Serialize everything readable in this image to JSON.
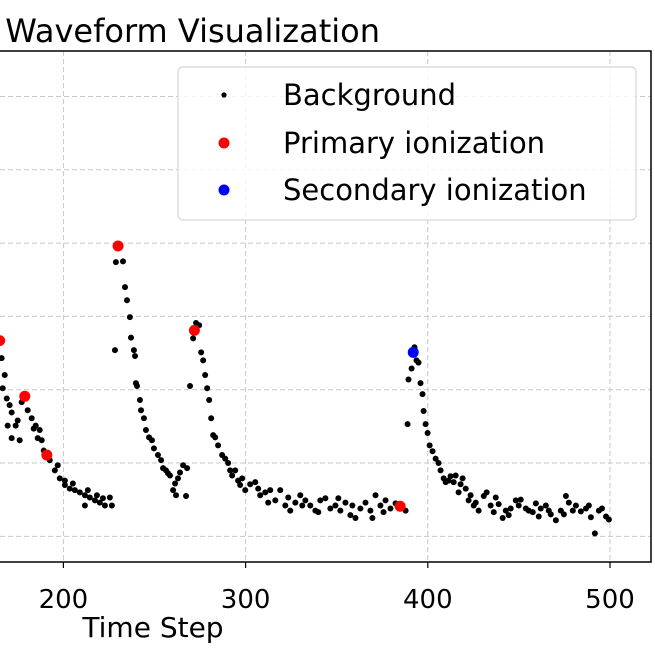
{
  "chart_data": {
    "type": "scatter",
    "title": "Waveform Visualization",
    "xlabel": "Time Step",
    "ylabel": "",
    "xlim": [
      165.2,
      522.5
    ],
    "ylim": [
      -0.35,
      6.62
    ],
    "x_ticks": [
      200,
      300,
      400,
      500
    ],
    "y_grid": [
      0,
      1,
      2,
      3,
      4,
      5,
      6
    ],
    "grid": true,
    "legend_position": "top-right",
    "series": [
      {
        "name": "Background",
        "color": "#000000",
        "points": [
          [
            166.1,
            2.43
          ],
          [
            167.8,
            2.2
          ],
          [
            166.7,
            2.02
          ],
          [
            168.9,
            1.88
          ],
          [
            170.5,
            1.79
          ],
          [
            171.6,
            1.69
          ],
          [
            174.9,
            1.58
          ],
          [
            173.8,
            1.51
          ],
          [
            176.0,
            1.31
          ],
          [
            171.6,
            1.34
          ],
          [
            169.4,
            1.51
          ],
          [
            177.1,
            1.83
          ],
          [
            180.4,
            1.72
          ],
          [
            182.6,
            1.61
          ],
          [
            184.8,
            1.51
          ],
          [
            187.0,
            1.45
          ],
          [
            183.7,
            1.47
          ],
          [
            185.9,
            1.34
          ],
          [
            188.1,
            1.31
          ],
          [
            189.2,
            1.17
          ],
          [
            192.5,
            1.04
          ],
          [
            195.3,
            0.9
          ],
          [
            198.0,
            0.79
          ],
          [
            200.8,
            0.7
          ],
          [
            203.5,
            0.65
          ],
          [
            206.3,
            0.63
          ],
          [
            209.0,
            0.6
          ],
          [
            211.8,
            0.56
          ],
          [
            214.5,
            0.53
          ],
          [
            217.3,
            0.49
          ],
          [
            220.0,
            0.46
          ],
          [
            222.8,
            0.42
          ],
          [
            225.5,
            0.53
          ],
          [
            226.6,
            0.42
          ],
          [
            211.8,
            0.42
          ],
          [
            200.8,
            0.76
          ],
          [
            196.9,
            0.97
          ],
          [
            205.2,
            0.72
          ],
          [
            213.4,
            0.63
          ],
          [
            218.4,
            0.56
          ],
          [
            221.7,
            0.52
          ],
          [
            228.3,
            2.54
          ],
          [
            228.8,
            3.74
          ],
          [
            232.7,
            3.75
          ],
          [
            231.0,
            3.96
          ],
          [
            233.8,
            3.4
          ],
          [
            234.9,
            3.22
          ],
          [
            236.5,
            2.99
          ],
          [
            237.1,
            2.71
          ],
          [
            238.7,
            2.54
          ],
          [
            239.3,
            2.46
          ],
          [
            239.8,
            2.09
          ],
          [
            240.4,
            2.05
          ],
          [
            242.0,
            1.86
          ],
          [
            242.6,
            1.72
          ],
          [
            244.2,
            1.61
          ],
          [
            245.3,
            1.45
          ],
          [
            247.0,
            1.35
          ],
          [
            248.6,
            1.31
          ],
          [
            249.7,
            1.2
          ],
          [
            251.9,
            1.11
          ],
          [
            253.6,
            1.04
          ],
          [
            254.7,
            0.93
          ],
          [
            256.3,
            0.9
          ],
          [
            257.4,
            0.86
          ],
          [
            258.5,
            0.83
          ],
          [
            260.2,
            0.63
          ],
          [
            261.3,
            0.72
          ],
          [
            262.9,
            0.79
          ],
          [
            264.0,
            0.87
          ],
          [
            265.7,
            0.97
          ],
          [
            267.3,
            0.55
          ],
          [
            267.9,
            0.93
          ],
          [
            261.8,
            0.56
          ],
          [
            269.5,
            2.05
          ],
          [
            272.8,
            2.91
          ],
          [
            274.5,
            2.88
          ],
          [
            271.2,
            2.7
          ],
          [
            275.6,
            2.51
          ],
          [
            276.7,
            2.4
          ],
          [
            277.8,
            2.2
          ],
          [
            278.9,
            2.02
          ],
          [
            280.0,
            1.86
          ],
          [
            281.1,
            1.61
          ],
          [
            282.2,
            1.38
          ],
          [
            283.3,
            1.35
          ],
          [
            284.9,
            1.24
          ],
          [
            287.1,
            1.11
          ],
          [
            288.8,
            1.06
          ],
          [
            290.4,
            1.0
          ],
          [
            291.5,
            0.9
          ],
          [
            292.6,
            0.83
          ],
          [
            294.3,
            0.9
          ],
          [
            295.9,
            0.76
          ],
          [
            297.0,
            0.7
          ],
          [
            299.8,
            0.63
          ],
          [
            302.5,
            0.71
          ],
          [
            305.3,
            0.74
          ],
          [
            308.0,
            0.56
          ],
          [
            310.8,
            0.6
          ],
          [
            313.5,
            0.63
          ],
          [
            316.3,
            0.49
          ],
          [
            319.0,
            0.63
          ],
          [
            321.8,
            0.42
          ],
          [
            324.5,
            0.35
          ],
          [
            327.3,
            0.46
          ],
          [
            330.0,
            0.56
          ],
          [
            332.8,
            0.49
          ],
          [
            335.5,
            0.42
          ],
          [
            338.3,
            0.35
          ],
          [
            341.0,
            0.49
          ],
          [
            343.8,
            0.52
          ],
          [
            346.5,
            0.38
          ],
          [
            349.3,
            0.42
          ],
          [
            352.0,
            0.35
          ],
          [
            354.8,
            0.46
          ],
          [
            357.5,
            0.29
          ],
          [
            360.3,
            0.25
          ],
          [
            363.0,
            0.38
          ],
          [
            365.8,
            0.46
          ],
          [
            368.5,
            0.35
          ],
          [
            371.3,
            0.56
          ],
          [
            374.0,
            0.42
          ],
          [
            376.8,
            0.49
          ],
          [
            379.5,
            0.38
          ],
          [
            382.3,
            0.45
          ],
          [
            387.8,
            0.35
          ],
          [
            298.1,
            0.79
          ],
          [
            306.9,
            0.65
          ],
          [
            312.4,
            0.46
          ],
          [
            323.4,
            0.53
          ],
          [
            331.1,
            0.42
          ],
          [
            339.9,
            0.33
          ],
          [
            350.9,
            0.52
          ],
          [
            358.6,
            0.42
          ],
          [
            369.6,
            0.25
          ],
          [
            375.7,
            0.33
          ],
          [
            388.9,
            1.53
          ],
          [
            389.4,
            2.14
          ],
          [
            391.1,
            2.29
          ],
          [
            392.7,
            2.58
          ],
          [
            393.8,
            2.4
          ],
          [
            394.9,
            2.37
          ],
          [
            396.0,
            2.09
          ],
          [
            397.1,
            1.94
          ],
          [
            397.7,
            1.71
          ],
          [
            398.8,
            1.53
          ],
          [
            399.9,
            1.41
          ],
          [
            401.0,
            1.24
          ],
          [
            402.6,
            1.16
          ],
          [
            404.3,
            1.06
          ],
          [
            405.9,
            1.0
          ],
          [
            407.0,
            0.9
          ],
          [
            408.7,
            0.79
          ],
          [
            409.8,
            0.74
          ],
          [
            411.4,
            0.76
          ],
          [
            412.5,
            0.82
          ],
          [
            415.3,
            0.83
          ],
          [
            416.9,
            0.6
          ],
          [
            418.0,
            0.71
          ],
          [
            419.1,
            0.79
          ],
          [
            420.8,
            0.65
          ],
          [
            422.4,
            0.49
          ],
          [
            423.5,
            0.56
          ],
          [
            426.3,
            0.46
          ],
          [
            427.9,
            0.35
          ],
          [
            430.7,
            0.55
          ],
          [
            432.3,
            0.6
          ],
          [
            434.5,
            0.42
          ],
          [
            437.3,
            0.53
          ],
          [
            438.9,
            0.44
          ],
          [
            441.1,
            0.25
          ],
          [
            442.8,
            0.35
          ],
          [
            445.5,
            0.38
          ],
          [
            448.3,
            0.49
          ],
          [
            451.0,
            0.5
          ],
          [
            453.8,
            0.38
          ],
          [
            455.4,
            0.35
          ],
          [
            457.6,
            0.33
          ],
          [
            459.3,
            0.45
          ],
          [
            462.0,
            0.38
          ],
          [
            464.8,
            0.42
          ],
          [
            467.5,
            0.3
          ],
          [
            470.3,
            0.22
          ],
          [
            473.0,
            0.35
          ],
          [
            475.8,
            0.55
          ],
          [
            477.4,
            0.46
          ],
          [
            479.6,
            0.35
          ],
          [
            481.3,
            0.42
          ],
          [
            484.0,
            0.34
          ],
          [
            486.8,
            0.38
          ],
          [
            489.5,
            0.26
          ],
          [
            491.7,
            0.04
          ],
          [
            493.9,
            0.35
          ],
          [
            495.6,
            0.38
          ],
          [
            497.8,
            0.27
          ],
          [
            499.4,
            0.23
          ],
          [
            414.2,
            0.74
          ],
          [
            425.2,
            0.42
          ],
          [
            436.2,
            0.33
          ],
          [
            444.4,
            0.29
          ],
          [
            449.9,
            0.42
          ],
          [
            460.9,
            0.27
          ],
          [
            466.4,
            0.35
          ],
          [
            474.7,
            0.3
          ],
          [
            488.4,
            0.42
          ]
        ]
      },
      {
        "name": "Primary ionization",
        "color": "#ff0000",
        "points": [
          [
            165.0,
            2.67
          ],
          [
            178.8,
            1.91
          ],
          [
            190.9,
            1.11
          ],
          [
            230.0,
            3.96
          ],
          [
            271.9,
            2.81
          ],
          [
            384.8,
            0.41
          ]
        ]
      },
      {
        "name": "Secondary ionization",
        "color": "#0000ff",
        "points": [
          [
            392.0,
            2.51
          ]
        ]
      }
    ]
  }
}
